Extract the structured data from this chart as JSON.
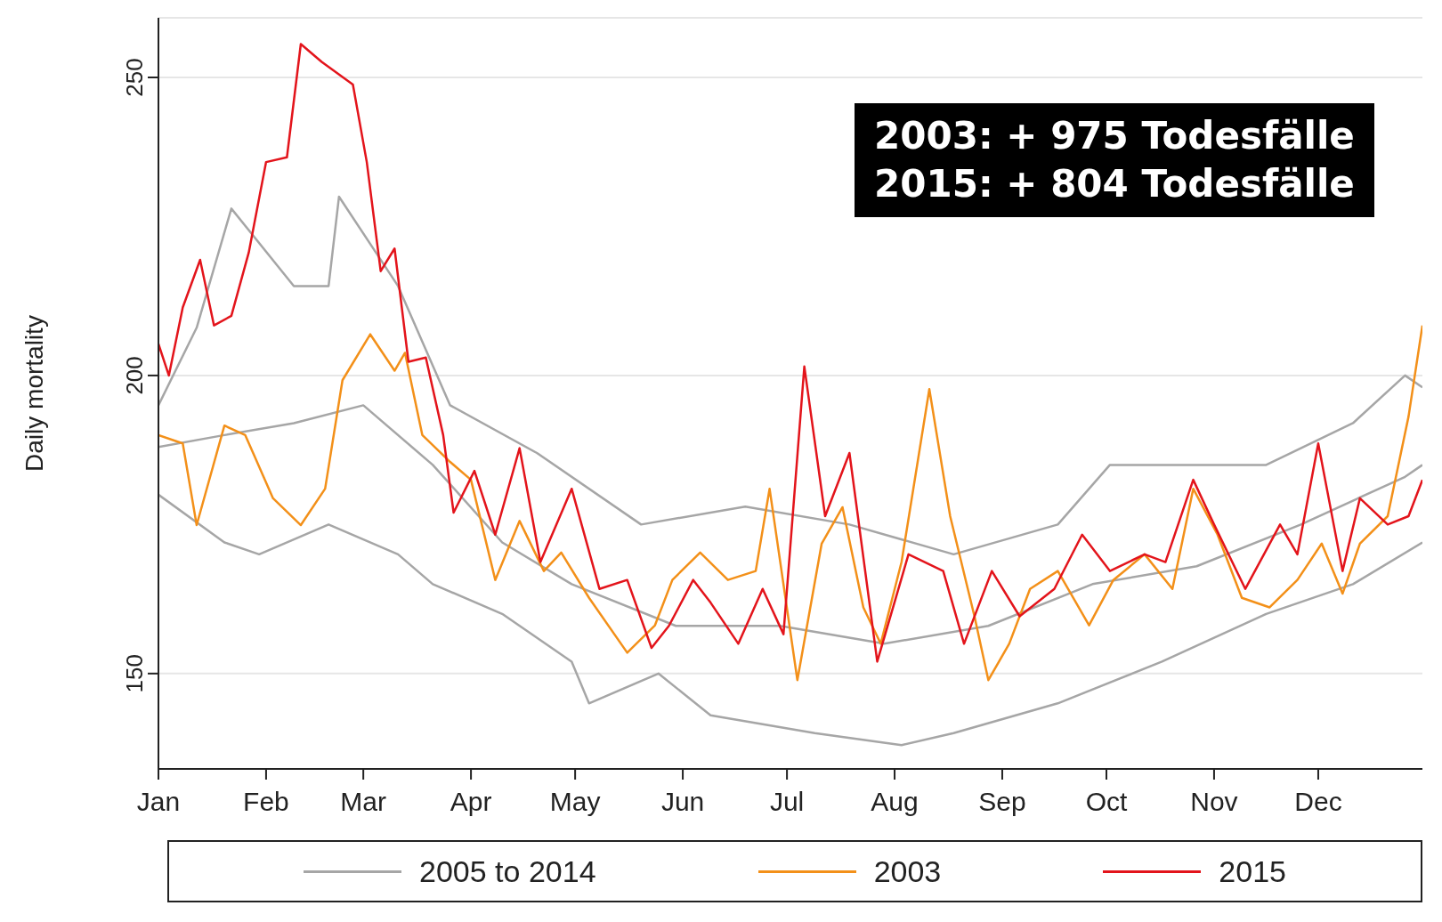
{
  "chart_data": {
    "type": "line",
    "ylabel": "Daily mortality",
    "annotations": [
      "2003: + 975 Todesfälle",
      "2015: + 804 Todesfälle"
    ],
    "xlim": [
      "--01-01",
      "--12-31"
    ],
    "xticks": [
      {
        "value": "--01-01",
        "label": "Jan"
      },
      {
        "value": "--02-01",
        "label": "Feb"
      },
      {
        "value": "--03-01",
        "label": "Mar"
      },
      {
        "value": "--04-01",
        "label": "Apr"
      },
      {
        "value": "--05-01",
        "label": "May"
      },
      {
        "value": "--06-01",
        "label": "Jun"
      },
      {
        "value": "--07-01",
        "label": "Jul"
      },
      {
        "value": "--08-01",
        "label": "Aug"
      },
      {
        "value": "--09-01",
        "label": "Sep"
      },
      {
        "value": "--10-01",
        "label": "Oct"
      },
      {
        "value": "--11-01",
        "label": "Nov"
      },
      {
        "value": "--12-01",
        "label": "Dec"
      }
    ],
    "ylim": [
      134,
      260
    ],
    "yticks": [
      150,
      200,
      250
    ],
    "grid": "y",
    "legend": "bottom",
    "marker": "none",
    "line_style": "solid",
    "series": [
      {
        "name": "2005 to 2014",
        "color": "#a6a6a6",
        "x": [
          "--01-01",
          "--01-12",
          "--01-22",
          "--02-09",
          "--02-19",
          "--02-22",
          "--03-11",
          "--03-26",
          "--04-20",
          "--05-20",
          "--06-19",
          "--07-19",
          "--08-18",
          "--09-17",
          "--10-02",
          "--10-17",
          "--11-16",
          "--12-11",
          "--12-26",
          "--12-31"
        ],
        "values": [
          195,
          208,
          228,
          215,
          215,
          230,
          215,
          195,
          187,
          175,
          178,
          175,
          170,
          175,
          185,
          185,
          185,
          192,
          200,
          198
        ]
      },
      {
        "color": "#a6a6a6",
        "x": [
          "--01-01",
          "--01-20",
          "--02-09",
          "--03-01",
          "--03-21",
          "--04-10",
          "--04-30",
          "--05-30",
          "--06-29",
          "--07-29",
          "--08-28",
          "--09-27",
          "--10-27",
          "--11-26",
          "--12-26",
          "--12-31"
        ],
        "values": [
          188,
          190,
          192,
          195,
          185,
          172,
          165,
          158,
          158,
          155,
          158,
          165,
          168,
          175,
          183,
          185
        ]
      },
      {
        "color": "#a6a6a6",
        "x": [
          "--01-01",
          "--01-20",
          "--01-30",
          "--02-19",
          "--03-11",
          "--03-21",
          "--04-10",
          "--04-30",
          "--05-05",
          "--05-25",
          "--06-09",
          "--07-09",
          "--08-03",
          "--08-18",
          "--09-17",
          "--10-17",
          "--11-16",
          "--12-11",
          "--12-31"
        ],
        "values": [
          180,
          172,
          170,
          175,
          170,
          165,
          160,
          152,
          145,
          150,
          143,
          140,
          138,
          140,
          145,
          152,
          160,
          165,
          172
        ]
      },
      {
        "name": "2003",
        "color": "#f39019",
        "x": [
          "--01-01",
          "--01-08",
          "--01-12",
          "--01-20",
          "--01-26",
          "--02-03",
          "--02-11",
          "--02-18",
          "--02-23",
          "--03-03",
          "--03-10",
          "--03-13",
          "--03-18",
          "--03-26",
          "--04-01",
          "--04-08",
          "--04-15",
          "--04-22",
          "--04-27",
          "--05-05",
          "--05-16",
          "--05-24",
          "--05-29",
          "--06-06",
          "--06-14",
          "--06-22",
          "--06-26",
          "--07-04",
          "--07-11",
          "--07-17",
          "--07-23",
          "--07-28",
          "--08-03",
          "--08-11",
          "--08-17",
          "--08-24",
          "--08-28",
          "--09-03",
          "--09-09",
          "--09-17",
          "--09-26",
          "--10-03",
          "--10-12",
          "--10-20",
          "--10-26",
          "--11-02",
          "--11-09",
          "--11-17",
          "--11-25",
          "--12-02",
          "--12-08",
          "--12-13",
          "--12-21",
          "--12-27",
          "--12-31"
        ],
        "values": [
          190,
          188.6,
          174.9,
          191.6,
          190,
          179.4,
          174.9,
          181,
          199.2,
          206.9,
          200.8,
          203.8,
          190,
          185.5,
          182.5,
          165.7,
          175.6,
          167.2,
          170.3,
          162.7,
          153.5,
          158.1,
          165.7,
          170.3,
          165.7,
          167.2,
          181,
          148.9,
          171.8,
          177.9,
          161.1,
          155,
          168.7,
          197.7,
          176.4,
          159.6,
          148.9,
          155,
          164.2,
          167.2,
          158.1,
          165.7,
          170,
          164.2,
          181,
          173.3,
          162.7,
          161.1,
          165.7,
          171.8,
          163.4,
          171.8,
          176.4,
          193.1,
          208.4
        ]
      },
      {
        "name": "2015",
        "color": "#e3141b",
        "x": [
          "--01-01",
          "--01-04",
          "--01-08",
          "--01-13",
          "--01-17",
          "--01-22",
          "--01-27",
          "--02-01",
          "--02-07",
          "--02-11",
          "--02-17",
          "--02-26",
          "--03-02",
          "--03-06",
          "--03-10",
          "--03-14",
          "--03-19",
          "--03-24",
          "--03-27",
          "--04-02",
          "--04-08",
          "--04-15",
          "--04-21",
          "--04-30",
          "--05-08",
          "--05-16",
          "--05-23",
          "--05-28",
          "--06-04",
          "--06-09",
          "--06-17",
          "--06-24",
          "--06-30",
          "--07-06",
          "--07-12",
          "--07-19",
          "--07-27",
          "--08-05",
          "--08-15",
          "--08-21",
          "--08-29",
          "--09-06",
          "--09-16",
          "--09-24",
          "--10-02",
          "--10-12",
          "--10-18",
          "--10-26",
          "--11-01",
          "--11-10",
          "--11-20",
          "--11-25",
          "--12-01",
          "--12-08",
          "--12-13",
          "--12-21",
          "--12-27",
          "--12-31"
        ],
        "values": [
          205.3,
          200,
          211.4,
          219.4,
          208.4,
          210,
          220.6,
          235.8,
          236.6,
          255.6,
          252.6,
          248.8,
          235.8,
          217.5,
          221.3,
          202.3,
          203,
          190,
          177,
          184,
          173.3,
          187.8,
          168.7,
          181,
          164.2,
          165.7,
          154.3,
          158,
          165.7,
          161.9,
          155,
          164.2,
          156.6,
          201.5,
          176.4,
          187,
          152,
          170,
          167.2,
          155,
          167.2,
          159.6,
          164.2,
          173.3,
          167.2,
          170,
          168.7,
          182.5,
          175,
          164.2,
          175,
          170,
          188.6,
          167.2,
          179.4,
          175,
          176.4,
          182.5
        ]
      }
    ]
  }
}
